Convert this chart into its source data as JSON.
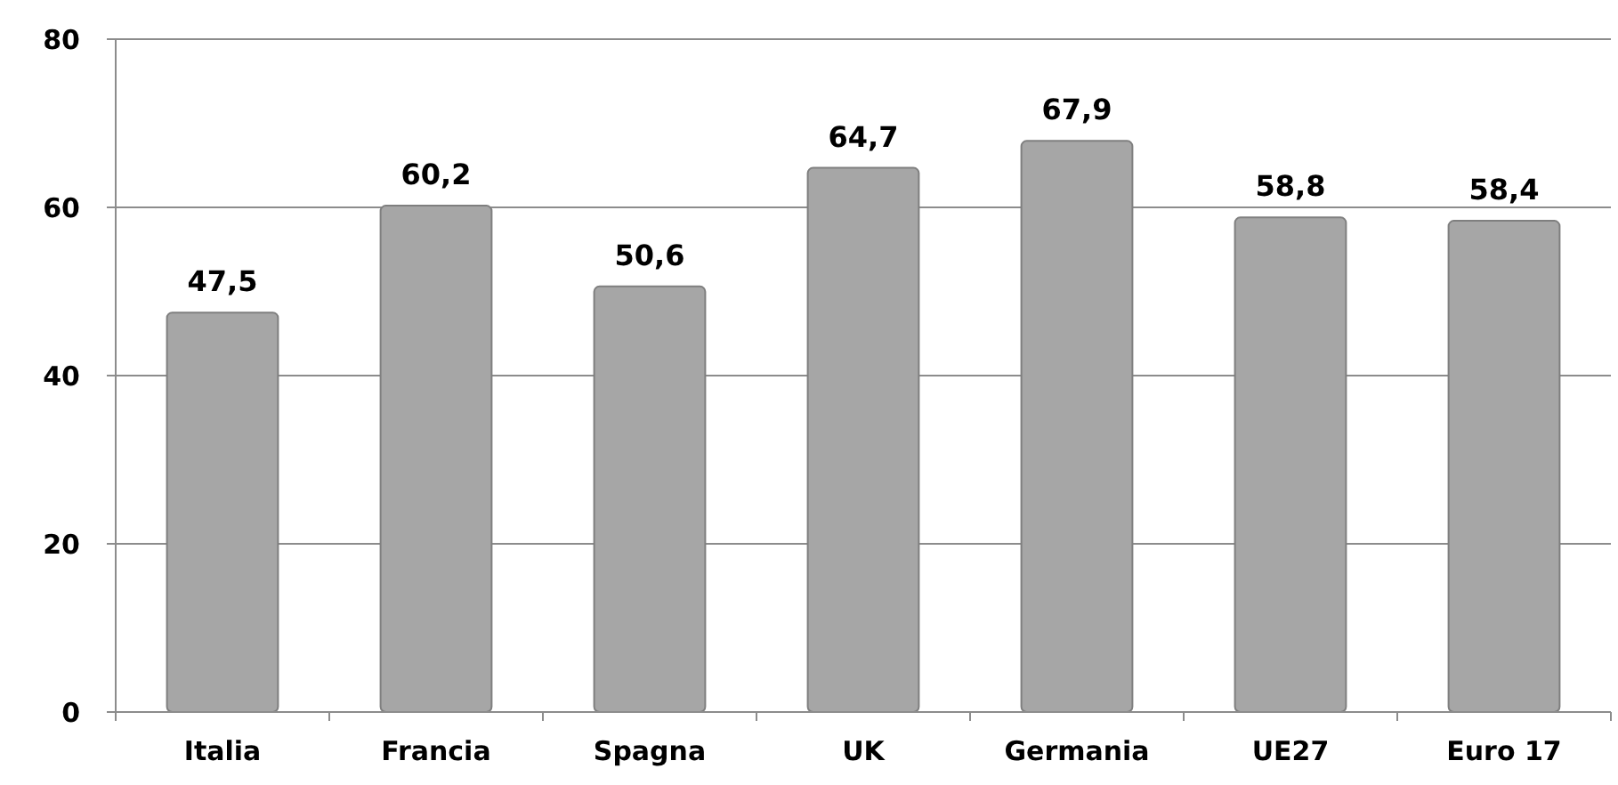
{
  "chart_data": {
    "type": "bar",
    "categories": [
      "Italia",
      "Francia",
      "Spagna",
      "UK",
      "Germania",
      "UE27",
      "Euro 17"
    ],
    "values": [
      47.5,
      60.2,
      50.6,
      64.7,
      67.9,
      58.8,
      58.4
    ],
    "value_labels": [
      "47,5",
      "60,2",
      "50,6",
      "64,7",
      "67,9",
      "58,8",
      "58,4"
    ],
    "color": "#a6a6a6",
    "ylim": [
      0,
      80
    ],
    "yticks": [
      0,
      20,
      40,
      60,
      80
    ],
    "grid": "y"
  }
}
